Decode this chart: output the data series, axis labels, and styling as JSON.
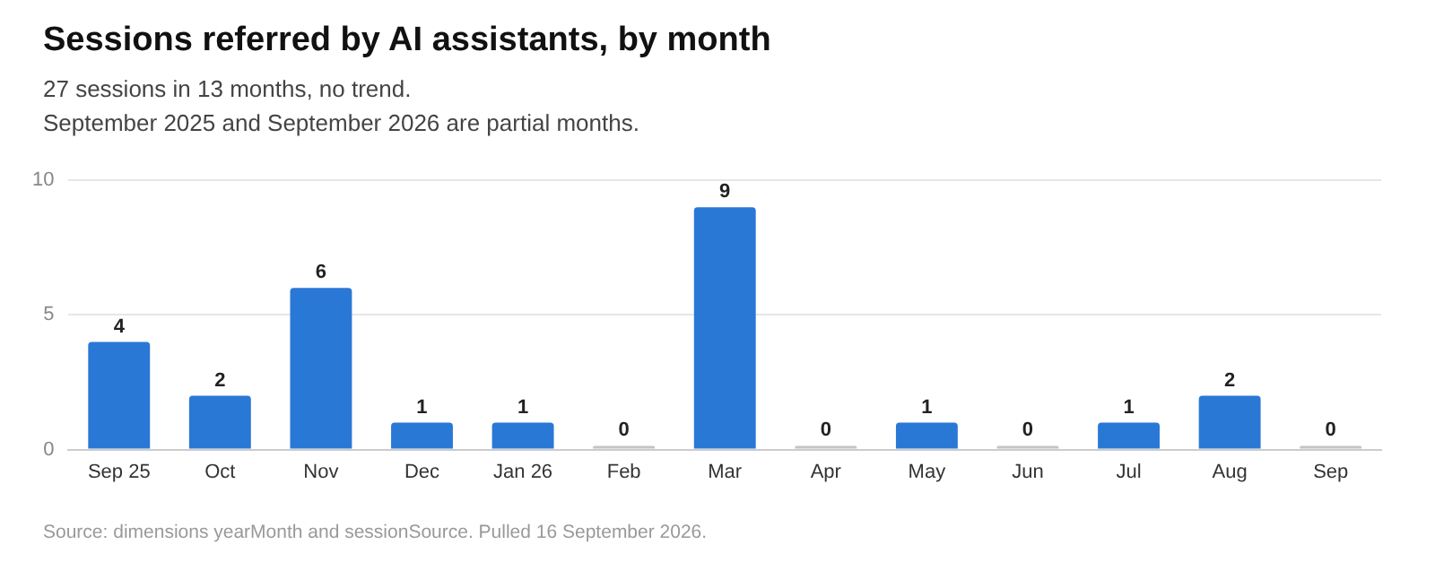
{
  "chart_data": {
    "type": "bar",
    "title": "Sessions referred by AI assistants, by month",
    "subtitle": "27 sessions in 13 months, no trend.\nSeptember 2025 and September 2026 are partial months.",
    "categories": [
      "Sep 25",
      "Oct",
      "Nov",
      "Dec",
      "Jan 26",
      "Feb",
      "Mar",
      "Apr",
      "May",
      "Jun",
      "Jul",
      "Aug",
      "Sep"
    ],
    "values": [
      4,
      2,
      6,
      1,
      1,
      0,
      9,
      0,
      1,
      0,
      1,
      2,
      0
    ],
    "colors": [
      "#2a78d6",
      "#2a78d6",
      "#2a78d6",
      "#2a78d6",
      "#2a78d6",
      "#c4c4c4",
      "#2a78d6",
      "#c4c4c4",
      "#2a78d6",
      "#c4c4c4",
      "#2a78d6",
      "#2a78d6",
      "#c4c4c4"
    ],
    "ylim": [
      0,
      10
    ],
    "yticks": [
      0,
      5,
      10
    ],
    "grid": "y",
    "legend": false,
    "data_labels": true,
    "annotations": [
      "Source: dimensions yearMonth and sessionSource. Pulled 16 September 2026."
    ]
  }
}
